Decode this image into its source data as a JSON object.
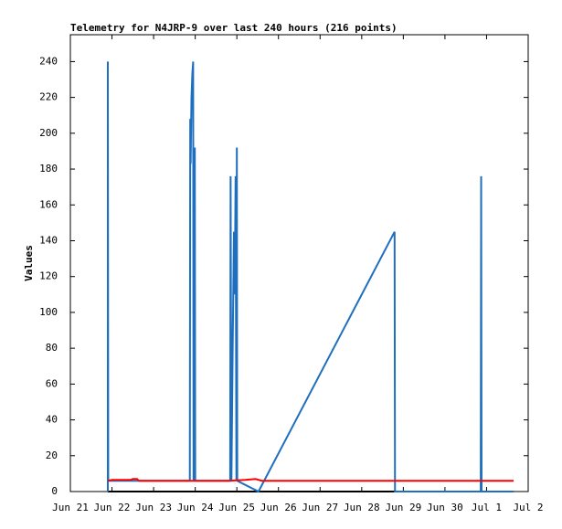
{
  "chart_data": {
    "type": "line",
    "title": "Telemetry for N4JRP-9 over last 240 hours (216 points)",
    "ylabel": "Values",
    "xlim": [
      0,
      11
    ],
    "ylim": [
      0,
      255
    ],
    "xticks": [
      {
        "value": 0,
        "label": "Jun 21"
      },
      {
        "value": 1,
        "label": "Jun 22"
      },
      {
        "value": 2,
        "label": "Jun 23"
      },
      {
        "value": 3,
        "label": "Jun 24"
      },
      {
        "value": 4,
        "label": "Jun 25"
      },
      {
        "value": 5,
        "label": "Jun 26"
      },
      {
        "value": 6,
        "label": "Jun 27"
      },
      {
        "value": 7,
        "label": "Jun 28"
      },
      {
        "value": 8,
        "label": "Jun 29"
      },
      {
        "value": 9,
        "label": "Jun 30"
      },
      {
        "value": 10,
        "label": "Jul 1"
      },
      {
        "value": 11,
        "label": "Jul 2"
      }
    ],
    "yticks": [
      0,
      20,
      40,
      60,
      80,
      100,
      120,
      140,
      160,
      180,
      200,
      220,
      240
    ],
    "series": [
      {
        "color": "#000000",
        "x": [
          0.9,
          10.65
        ],
        "values": [
          0,
          0
        ]
      },
      {
        "color": "#1f6fbf",
        "x": [
          0.9,
          0.9,
          0.91,
          2.87,
          2.88,
          2.89,
          2.91,
          2.93,
          2.95,
          2.96,
          2.99,
          3.0,
          3.84,
          3.85,
          3.87,
          3.9,
          3.93,
          3.95,
          3.97,
          3.99,
          4.0,
          4.01,
          4.52,
          7.79,
          7.8,
          9.86,
          9.87,
          9.88,
          10.65
        ],
        "values": [
          0,
          240,
          6,
          6,
          208,
          183,
          220,
          233,
          240,
          6,
          192,
          6,
          6,
          176,
          6,
          80,
          145,
          110,
          176,
          6,
          192,
          6,
          0,
          145,
          0,
          0,
          176,
          0,
          0
        ]
      },
      {
        "color": "#ff0000",
        "x": [
          0.9,
          1.0,
          1.45,
          1.5,
          1.6,
          1.65,
          3.8,
          4.2,
          4.45,
          4.6,
          10.65
        ],
        "values": [
          6,
          6.5,
          6.5,
          7,
          7,
          6,
          6,
          6.5,
          7,
          6,
          6
        ]
      }
    ]
  }
}
